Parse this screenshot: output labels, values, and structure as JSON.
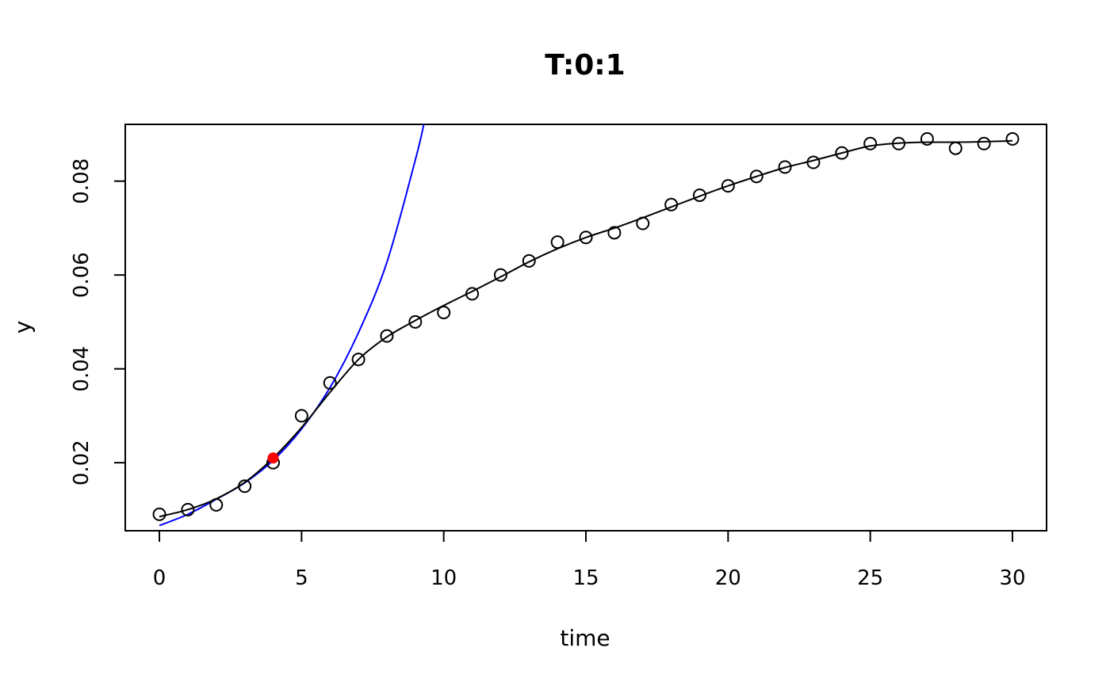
{
  "chart_data": {
    "type": "scatter",
    "title": "T:0:1",
    "xlabel": "time",
    "ylabel": "y",
    "xlim": [
      -1.2,
      31.2
    ],
    "ylim": [
      0.0055,
      0.0921
    ],
    "xticks": [
      0,
      5,
      10,
      15,
      20,
      25,
      30
    ],
    "yticks": [
      0.02,
      0.04,
      0.06,
      0.08
    ],
    "ytick_labels": [
      "0.02",
      "0.04",
      "0.06",
      "0.08"
    ],
    "grid": false,
    "observations": {
      "marker": "open-circle",
      "color": "#000000",
      "x": [
        0,
        1,
        2,
        3,
        4,
        5,
        6,
        7,
        8,
        9,
        10,
        11,
        12,
        13,
        14,
        15,
        16,
        17,
        18,
        19,
        20,
        21,
        22,
        23,
        24,
        25,
        26,
        27,
        28,
        29,
        30
      ],
      "y": [
        0.009,
        0.01,
        0.011,
        0.015,
        0.02,
        0.03,
        0.037,
        0.042,
        0.047,
        0.05,
        0.052,
        0.056,
        0.06,
        0.063,
        0.067,
        0.068,
        0.069,
        0.071,
        0.075,
        0.077,
        0.079,
        0.081,
        0.083,
        0.084,
        0.086,
        0.088,
        0.088,
        0.089,
        0.087,
        0.088,
        0.089
      ]
    },
    "smooth_fit": {
      "color": "#000000",
      "x": [
        0,
        1,
        2,
        3,
        4,
        5,
        6,
        7,
        8,
        9,
        10,
        11,
        12,
        13,
        14,
        15,
        16,
        17,
        18,
        19,
        20,
        21,
        22,
        23,
        24,
        25,
        26,
        27,
        28,
        29,
        30
      ],
      "y": [
        0.0085,
        0.01,
        0.0123,
        0.0158,
        0.021,
        0.0275,
        0.035,
        0.042,
        0.0468,
        0.0503,
        0.0535,
        0.0565,
        0.0596,
        0.0628,
        0.0656,
        0.068,
        0.07,
        0.0722,
        0.0745,
        0.0768,
        0.079,
        0.081,
        0.0829,
        0.0844,
        0.086,
        0.0875,
        0.0881,
        0.0883,
        0.0883,
        0.0884,
        0.0886
      ]
    },
    "exponential_fit": {
      "color": "#0000ff",
      "x": [
        0,
        1,
        2,
        3,
        4,
        5,
        6,
        7,
        8,
        9,
        9.3
      ],
      "y": [
        0.0066,
        0.009,
        0.0122,
        0.0157,
        0.0205,
        0.0272,
        0.036,
        0.0477,
        0.0627,
        0.0845,
        0.0921
      ]
    },
    "highlight_point": {
      "color": "#ff0000",
      "x": 4,
      "y": 0.021
    }
  }
}
